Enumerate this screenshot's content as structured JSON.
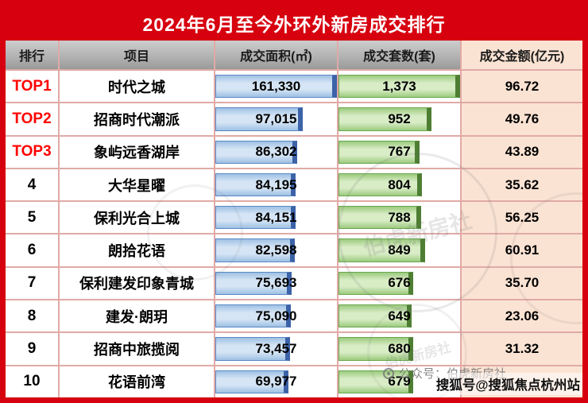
{
  "chart_data": {
    "type": "table",
    "title": "2024年6月至今外环外新房成交排行",
    "columns": [
      "排行",
      "项目",
      "成交面积(㎡)",
      "成交套数(套)",
      "成交金额(亿元)"
    ],
    "rows": [
      {
        "rank": "TOP1",
        "project": "时代之城",
        "area": "161,330",
        "units": "1,373",
        "amount": "96.72",
        "highlight": true
      },
      {
        "rank": "TOP2",
        "project": "招商时代潮派",
        "area": "97,015",
        "units": "952",
        "amount": "49.76",
        "highlight": true
      },
      {
        "rank": "TOP3",
        "project": "象屿远香湖岸",
        "area": "86,302",
        "units": "767",
        "amount": "43.89",
        "highlight": true
      },
      {
        "rank": "4",
        "project": "大华星曜",
        "area": "84,195",
        "units": "804",
        "amount": "35.62",
        "highlight": false
      },
      {
        "rank": "5",
        "project": "保利光合上城",
        "area": "84,151",
        "units": "788",
        "amount": "56.25",
        "highlight": false
      },
      {
        "rank": "6",
        "project": "朗拾花语",
        "area": "82,598",
        "units": "849",
        "amount": "60.91",
        "highlight": false
      },
      {
        "rank": "7",
        "project": "保利建发印象青城",
        "area": "75,693",
        "units": "676",
        "amount": "35.70",
        "highlight": false
      },
      {
        "rank": "8",
        "project": "建发·朗玥",
        "area": "75,090",
        "units": "649",
        "amount": "23.06",
        "highlight": false
      },
      {
        "rank": "9",
        "project": "招商中旅揽阅",
        "area": "73,457",
        "units": "680",
        "amount": "31.32",
        "highlight": false
      },
      {
        "rank": "10",
        "project": "花语前湾",
        "area": "69,977",
        "units": "679",
        "amount": "",
        "highlight": false
      }
    ],
    "bar_columns": {
      "area": {
        "min": 69977,
        "max": 161330,
        "color": "#9ec1e4"
      },
      "units": {
        "min": 649,
        "max": 1373,
        "color": "#9ccb7e"
      }
    },
    "legend_position": "none",
    "grid": true
  },
  "colors": {
    "accent_red": "#d7000f",
    "rank_top_red": "#ff0000",
    "amount_cell_bg": "#fbe3d3",
    "header_bg": "#b3b3b3",
    "grid_line": "#e0aaa6"
  },
  "watermarks": {
    "wechat": "公众号：伯虎新房社",
    "sohu": "搜狐号@搜狐焦点杭州站",
    "stamp_text": "伯虎新房社"
  }
}
